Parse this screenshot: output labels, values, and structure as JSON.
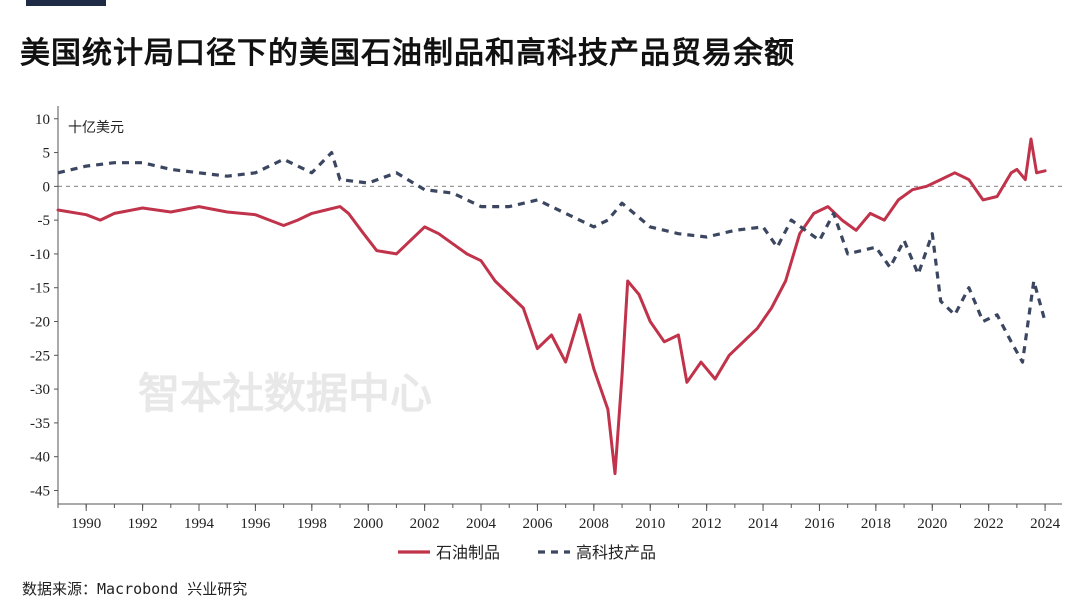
{
  "page": {
    "title": "美国统计局口径下的美国石油制品和高科技产品贸易余额",
    "source": "数据来源：Macrobond 兴业研究",
    "watermark": "智本社数据中心"
  },
  "chart_data": {
    "type": "line",
    "unit_label": "十亿美元",
    "xlim": [
      1989,
      2024.6
    ],
    "ylim": [
      -47,
      11
    ],
    "y_ticks": [
      10,
      5,
      0,
      -5,
      -10,
      -15,
      -20,
      -25,
      -30,
      -35,
      -40,
      -45
    ],
    "x_ticks": [
      1990,
      1992,
      1994,
      1996,
      1998,
      2000,
      2002,
      2004,
      2006,
      2008,
      2010,
      2012,
      2014,
      2016,
      2018,
      2020,
      2022,
      2024
    ],
    "zero_line": true,
    "legend_placement": "bottom",
    "series": [
      {
        "name": "石油制品",
        "color": "#c0334a",
        "style": "solid",
        "points": [
          [
            1989.0,
            -3.5
          ],
          [
            1990.0,
            -4.2
          ],
          [
            1990.5,
            -5.0
          ],
          [
            1991.0,
            -4.0
          ],
          [
            1992.0,
            -3.2
          ],
          [
            1993.0,
            -3.8
          ],
          [
            1994.0,
            -3.0
          ],
          [
            1995.0,
            -3.8
          ],
          [
            1996.0,
            -4.2
          ],
          [
            1996.5,
            -5.0
          ],
          [
            1997.0,
            -5.8
          ],
          [
            1997.5,
            -5.0
          ],
          [
            1998.0,
            -4.0
          ],
          [
            1998.5,
            -3.5
          ],
          [
            1999.0,
            -3.0
          ],
          [
            1999.3,
            -4.0
          ],
          [
            1999.8,
            -6.8
          ],
          [
            2000.3,
            -9.5
          ],
          [
            2001.0,
            -10.0
          ],
          [
            2001.5,
            -8.0
          ],
          [
            2002.0,
            -6.0
          ],
          [
            2002.5,
            -7.0
          ],
          [
            2003.0,
            -8.5
          ],
          [
            2003.5,
            -10.0
          ],
          [
            2004.0,
            -11.0
          ],
          [
            2004.5,
            -14.0
          ],
          [
            2005.0,
            -16.0
          ],
          [
            2005.5,
            -18.0
          ],
          [
            2006.0,
            -24.0
          ],
          [
            2006.5,
            -22.0
          ],
          [
            2007.0,
            -26.0
          ],
          [
            2007.5,
            -19.0
          ],
          [
            2008.0,
            -27.0
          ],
          [
            2008.5,
            -33.0
          ],
          [
            2008.75,
            -42.5
          ],
          [
            2009.0,
            -28.0
          ],
          [
            2009.2,
            -14.0
          ],
          [
            2009.6,
            -16.0
          ],
          [
            2010.0,
            -20.0
          ],
          [
            2010.5,
            -23.0
          ],
          [
            2011.0,
            -22.0
          ],
          [
            2011.3,
            -29.0
          ],
          [
            2011.8,
            -26.0
          ],
          [
            2012.3,
            -28.5
          ],
          [
            2012.8,
            -25.0
          ],
          [
            2013.3,
            -23.0
          ],
          [
            2013.8,
            -21.0
          ],
          [
            2014.3,
            -18.0
          ],
          [
            2014.8,
            -14.0
          ],
          [
            2015.3,
            -7.0
          ],
          [
            2015.8,
            -4.0
          ],
          [
            2016.3,
            -3.0
          ],
          [
            2016.8,
            -5.0
          ],
          [
            2017.3,
            -6.5
          ],
          [
            2017.8,
            -4.0
          ],
          [
            2018.3,
            -5.0
          ],
          [
            2018.8,
            -2.0
          ],
          [
            2019.3,
            -0.5
          ],
          [
            2019.8,
            0.0
          ],
          [
            2020.3,
            1.0
          ],
          [
            2020.8,
            2.0
          ],
          [
            2021.3,
            1.0
          ],
          [
            2021.8,
            -2.0
          ],
          [
            2022.3,
            -1.5
          ],
          [
            2022.8,
            2.0
          ],
          [
            2023.0,
            2.5
          ],
          [
            2023.3,
            1.0
          ],
          [
            2023.5,
            7.0
          ],
          [
            2023.7,
            2.0
          ],
          [
            2024.0,
            2.3
          ]
        ]
      },
      {
        "name": "高科技产品",
        "color": "#3b4660",
        "style": "dashed",
        "points": [
          [
            1989.0,
            2.0
          ],
          [
            1990.0,
            3.0
          ],
          [
            1991.0,
            3.5
          ],
          [
            1992.0,
            3.5
          ],
          [
            1993.0,
            2.5
          ],
          [
            1994.0,
            2.0
          ],
          [
            1995.0,
            1.5
          ],
          [
            1996.0,
            2.0
          ],
          [
            1997.0,
            4.0
          ],
          [
            1998.0,
            2.0
          ],
          [
            1998.7,
            5.0
          ],
          [
            1999.0,
            1.0
          ],
          [
            2000.0,
            0.5
          ],
          [
            2001.0,
            2.0
          ],
          [
            2002.0,
            -0.5
          ],
          [
            2003.0,
            -1.0
          ],
          [
            2004.0,
            -3.0
          ],
          [
            2005.0,
            -3.0
          ],
          [
            2006.0,
            -2.0
          ],
          [
            2007.0,
            -4.0
          ],
          [
            2008.0,
            -6.0
          ],
          [
            2008.5,
            -5.0
          ],
          [
            2009.0,
            -2.5
          ],
          [
            2010.0,
            -6.0
          ],
          [
            2011.0,
            -7.0
          ],
          [
            2012.0,
            -7.5
          ],
          [
            2013.0,
            -6.5
          ],
          [
            2014.0,
            -6.0
          ],
          [
            2014.5,
            -9.0
          ],
          [
            2015.0,
            -5.0
          ],
          [
            2016.0,
            -8.0
          ],
          [
            2016.5,
            -4.0
          ],
          [
            2017.0,
            -10.0
          ],
          [
            2018.0,
            -9.0
          ],
          [
            2018.5,
            -12.0
          ],
          [
            2019.0,
            -8.0
          ],
          [
            2019.5,
            -13.0
          ],
          [
            2020.0,
            -7.0
          ],
          [
            2020.3,
            -17.0
          ],
          [
            2020.8,
            -19.0
          ],
          [
            2021.3,
            -15.0
          ],
          [
            2021.8,
            -20.0
          ],
          [
            2022.3,
            -19.0
          ],
          [
            2022.8,
            -23.0
          ],
          [
            2023.2,
            -26.0
          ],
          [
            2023.6,
            -14.0
          ],
          [
            2024.0,
            -20.0
          ]
        ]
      }
    ]
  }
}
